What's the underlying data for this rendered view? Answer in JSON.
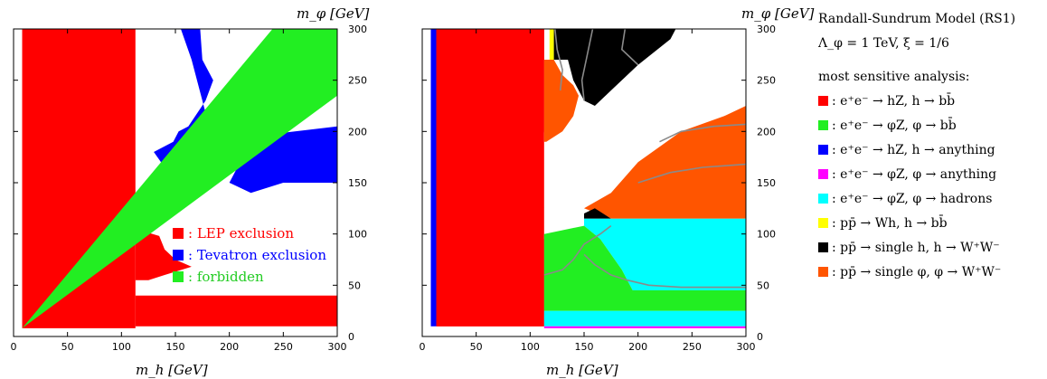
{
  "colors": {
    "red": "#ff0000",
    "green": "#22ee22",
    "blue": "#0000ff",
    "magenta": "#ff00ff",
    "cyan": "#00ffff",
    "yellow": "#ffff00",
    "black": "#000000",
    "orange": "#ff5500",
    "grey_contour": "#8a8a8a"
  },
  "chart_data": [
    {
      "type": "heatmap",
      "xlabel": "m_h [GeV]",
      "ylabel": "m_φ [GeV]",
      "xlim": [
        0,
        300
      ],
      "ylim": [
        0,
        300
      ],
      "xticks": [
        "0",
        "50",
        "100",
        "150",
        "200",
        "250",
        "300"
      ],
      "yticks": [
        "0",
        "50",
        "100",
        "150",
        "200",
        "250",
        "300"
      ],
      "legend_placement": "inside-right",
      "legend": [
        {
          "label": ": LEP exclusion",
          "color": "red",
          "text_color": "#ff0000"
        },
        {
          "label": ": Tevatron exclusion",
          "color": "blue",
          "text_color": "#0000ff"
        },
        {
          "label": ": forbidden",
          "color": "green",
          "text_color": "#22cc22"
        }
      ],
      "regions": [
        {
          "color": "red",
          "points": [
            [
              8,
              300
            ],
            [
              113,
              300
            ],
            [
              113,
              10
            ],
            [
              300,
              10
            ],
            [
              300,
              40
            ],
            [
              113,
              40
            ],
            [
              113,
              105
            ],
            [
              135,
              98
            ],
            [
              140,
              85
            ],
            [
              150,
              75
            ],
            [
              165,
              68
            ],
            [
              140,
              60
            ],
            [
              125,
              55
            ],
            [
              113,
              55
            ],
            [
              113,
              300
            ],
            [
              8,
              300
            ]
          ]
        },
        {
          "color": "red",
          "points": [
            [
              8,
              300
            ],
            [
              8,
              8
            ],
            [
              113,
              8
            ],
            [
              113,
              300
            ]
          ]
        },
        {
          "color": "blue",
          "points": [
            [
              155,
              300
            ],
            [
              173,
              300
            ],
            [
              175,
              270
            ],
            [
              185,
              250
            ],
            [
              178,
              230
            ],
            [
              162,
              205
            ],
            [
              153,
              200
            ],
            [
              148,
              190
            ],
            [
              130,
              180
            ],
            [
              140,
              165
            ],
            [
              145,
              150
            ],
            [
              160,
              145
            ],
            [
              170,
              160
            ],
            [
              175,
              200
            ],
            [
              185,
              190
            ],
            [
              165,
              270
            ]
          ]
        },
        {
          "color": "blue",
          "points": [
            [
              220,
              195
            ],
            [
              300,
              205
            ],
            [
              300,
              150
            ],
            [
              250,
              150
            ],
            [
              220,
              140
            ],
            [
              200,
              150
            ],
            [
              210,
              170
            ]
          ]
        },
        {
          "color": "green",
          "points": [
            [
              8,
              8
            ],
            [
              240,
              300
            ],
            [
              300,
              300
            ],
            [
              300,
              235
            ],
            [
              8,
              8
            ]
          ]
        }
      ]
    },
    {
      "type": "heatmap",
      "xlabel": "m_h [GeV]",
      "ylabel": "m_φ [GeV]",
      "xlim": [
        0,
        300
      ],
      "ylim": [
        0,
        300
      ],
      "xticks": [
        "0",
        "50",
        "100",
        "150",
        "200",
        "250",
        "300"
      ],
      "yticks": [
        "0",
        "50",
        "100",
        "150",
        "200",
        "250",
        "300"
      ],
      "regions": [
        {
          "color": "blue",
          "points": [
            [
              8,
              10
            ],
            [
              13,
              10
            ],
            [
              13,
              300
            ],
            [
              8,
              300
            ]
          ]
        },
        {
          "color": "red",
          "points": [
            [
              13,
              10
            ],
            [
              113,
              10
            ],
            [
              113,
              95
            ],
            [
              100,
              75
            ],
            [
              60,
              40
            ],
            [
              20,
              12
            ],
            [
              13,
              12
            ],
            [
              13,
              300
            ],
            [
              113,
              300
            ],
            [
              113,
              200
            ],
            [
              108,
              170
            ],
            [
              103,
              150
            ],
            [
              113,
              125
            ],
            [
              13,
              300
            ]
          ]
        },
        {
          "color": "red",
          "points": [
            [
              13,
              12
            ],
            [
              13,
              300
            ],
            [
              113,
              300
            ],
            [
              113,
              10
            ],
            [
              13,
              10
            ]
          ]
        },
        {
          "color": "yellow",
          "points": [
            [
              118,
              300
            ],
            [
              122,
              300
            ],
            [
              122,
              270
            ],
            [
              118,
              270
            ]
          ]
        },
        {
          "color": "black",
          "points": [
            [
              122,
              300
            ],
            [
              235,
              300
            ],
            [
              230,
              290
            ],
            [
              200,
              265
            ],
            [
              175,
              240
            ],
            [
              160,
              225
            ],
            [
              150,
              230
            ],
            [
              140,
              250
            ],
            [
              135,
              270
            ],
            [
              122,
              270
            ]
          ]
        },
        {
          "color": "orange",
          "points": [
            [
              113,
              270
            ],
            [
              122,
              270
            ],
            [
              130,
              255
            ],
            [
              140,
              245
            ],
            [
              145,
              235
            ],
            [
              140,
              215
            ],
            [
              130,
              200
            ],
            [
              115,
              190
            ],
            [
              113,
              190
            ]
          ]
        },
        {
          "color": "orange",
          "points": [
            [
              175,
              115
            ],
            [
              300,
              115
            ],
            [
              300,
              225
            ],
            [
              280,
              215
            ],
            [
              240,
              200
            ],
            [
              200,
              170
            ],
            [
              175,
              140
            ],
            [
              150,
              125
            ]
          ]
        },
        {
          "color": "black",
          "points": [
            [
              150,
              115
            ],
            [
              175,
              115
            ],
            [
              160,
              125
            ],
            [
              150,
              120
            ]
          ]
        },
        {
          "color": "cyan",
          "points": [
            [
              150,
              115
            ],
            [
              300,
              115
            ],
            [
              300,
              45
            ],
            [
              195,
              45
            ],
            [
              185,
              65
            ],
            [
              175,
              80
            ],
            [
              165,
              95
            ],
            [
              150,
              108
            ]
          ]
        },
        {
          "color": "green",
          "points": [
            [
              113,
              100
            ],
            [
              150,
              108
            ],
            [
              165,
              95
            ],
            [
              175,
              80
            ],
            [
              185,
              65
            ],
            [
              195,
              45
            ],
            [
              300,
              45
            ],
            [
              300,
              25
            ],
            [
              113,
              25
            ],
            [
              113,
              55
            ]
          ]
        },
        {
          "color": "cyan",
          "points": [
            [
              113,
              25
            ],
            [
              300,
              25
            ],
            [
              300,
              10
            ],
            [
              113,
              10
            ]
          ]
        },
        {
          "color": "magenta",
          "points": [
            [
              113,
              10
            ],
            [
              300,
              10
            ],
            [
              300,
              8
            ],
            [
              113,
              8
            ]
          ]
        }
      ],
      "contours": [
        [
          [
            123,
            300
          ],
          [
            125,
            280
          ],
          [
            130,
            260
          ],
          [
            128,
            240
          ]
        ],
        [
          [
            158,
            300
          ],
          [
            152,
            270
          ],
          [
            148,
            250
          ],
          [
            150,
            230
          ]
        ],
        [
          [
            188,
            300
          ],
          [
            185,
            280
          ],
          [
            195,
            270
          ],
          [
            200,
            265
          ]
        ],
        [
          [
            150,
            80
          ],
          [
            160,
            70
          ],
          [
            175,
            60
          ],
          [
            190,
            55
          ],
          [
            210,
            50
          ],
          [
            240,
            48
          ],
          [
            300,
            48
          ]
        ],
        [
          [
            113,
            60
          ],
          [
            130,
            65
          ],
          [
            140,
            75
          ],
          [
            150,
            90
          ],
          [
            165,
            100
          ],
          [
            175,
            108
          ]
        ],
        [
          [
            220,
            190
          ],
          [
            240,
            200
          ],
          [
            270,
            205
          ],
          [
            300,
            207
          ]
        ],
        [
          [
            200,
            150
          ],
          [
            230,
            160
          ],
          [
            260,
            165
          ],
          [
            300,
            168
          ]
        ]
      ]
    }
  ],
  "side_panel": {
    "title": "Randall-Sundrum Model (RS1)",
    "params": "Λ_φ = 1 TeV, ξ = 1/6",
    "heading": "most sensitive analysis:",
    "items": [
      {
        "color": "red",
        "text": ": e⁺e⁻ → hZ, h → bb̄"
      },
      {
        "color": "green",
        "text": ": e⁺e⁻ → φZ, φ → bb̄"
      },
      {
        "color": "blue",
        "text": ": e⁺e⁻ → hZ, h → anything"
      },
      {
        "color": "magenta",
        "text": ": e⁺e⁻ → φZ, φ → anything"
      },
      {
        "color": "cyan",
        "text": ": e⁺e⁻ → φZ, φ → hadrons"
      },
      {
        "color": "yellow",
        "text": ": pp̄ → Wh, h → bb̄"
      },
      {
        "color": "black",
        "text": ": pp̄ → single h, h → W⁺W⁻"
      },
      {
        "color": "orange",
        "text": ": pp̄ → single φ, φ → W⁺W⁻"
      }
    ]
  }
}
